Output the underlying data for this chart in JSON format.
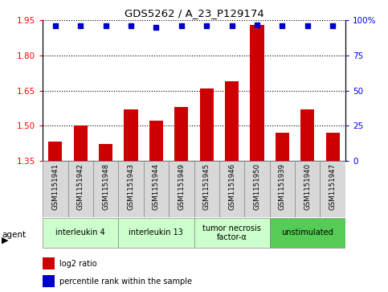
{
  "title": "GDS5262 / A_23_P129174",
  "samples": [
    "GSM1151941",
    "GSM1151942",
    "GSM1151948",
    "GSM1151943",
    "GSM1151944",
    "GSM1151949",
    "GSM1151945",
    "GSM1151946",
    "GSM1151950",
    "GSM1151939",
    "GSM1151940",
    "GSM1151947"
  ],
  "log2_ratio": [
    1.43,
    1.5,
    1.42,
    1.57,
    1.52,
    1.58,
    1.66,
    1.69,
    1.93,
    1.47,
    1.57,
    1.47
  ],
  "percentile": [
    96,
    96,
    96,
    96,
    95,
    96,
    96,
    96,
    97,
    96,
    96,
    96
  ],
  "ylim_left": [
    1.35,
    1.95
  ],
  "ylim_right": [
    0,
    100
  ],
  "yticks_left": [
    1.35,
    1.5,
    1.65,
    1.8,
    1.95
  ],
  "yticks_right": [
    0,
    25,
    50,
    75,
    100
  ],
  "bar_color": "#cc0000",
  "dot_color": "#0000cc",
  "agent_groups": [
    {
      "label": "interleukin 4",
      "start": 0,
      "end": 3,
      "color": "#ccffcc"
    },
    {
      "label": "interleukin 13",
      "start": 3,
      "end": 6,
      "color": "#ccffcc"
    },
    {
      "label": "tumor necrosis\nfactor-α",
      "start": 6,
      "end": 9,
      "color": "#ccffcc"
    },
    {
      "label": "unstimulated",
      "start": 9,
      "end": 12,
      "color": "#55cc55"
    }
  ],
  "legend_items": [
    {
      "color": "#cc0000",
      "label": "log2 ratio"
    },
    {
      "color": "#0000cc",
      "label": "percentile rank within the sample"
    }
  ],
  "sample_bg_color": "#d8d8d8",
  "plot_bg": "#ffffff",
  "bar_baseline": 1.35
}
